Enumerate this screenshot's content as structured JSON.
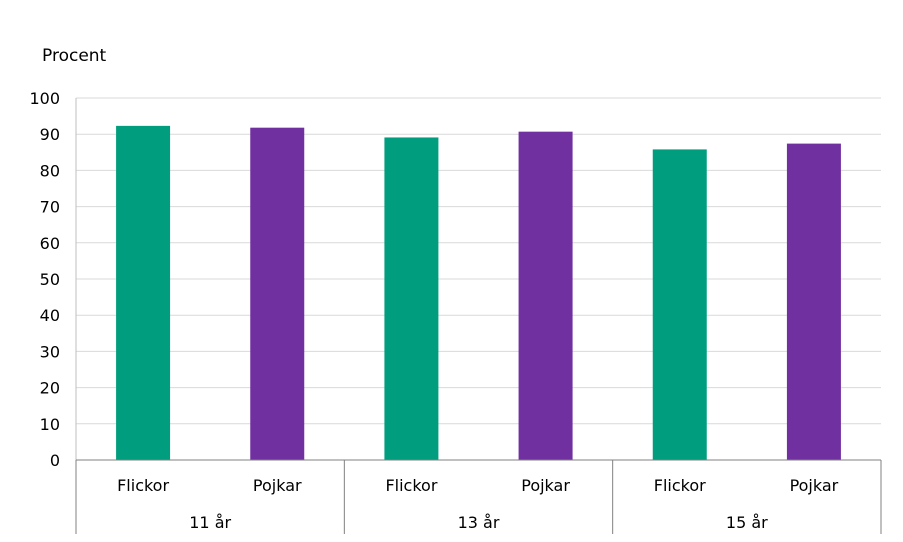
{
  "chart_data": {
    "type": "bar",
    "ylabel": "Procent",
    "ylim": [
      0,
      100
    ],
    "yticks": [
      0,
      10,
      20,
      30,
      40,
      50,
      60,
      70,
      80,
      90,
      100
    ],
    "grid": true,
    "colors": {
      "Flickor": "#009e7e",
      "Pojkar": "#7030a0"
    },
    "groups": [
      {
        "label": "11 år",
        "bars": [
          {
            "label": "Flickor",
            "value": 92.3
          },
          {
            "label": "Pojkar",
            "value": 91.8
          }
        ]
      },
      {
        "label": "13 år",
        "bars": [
          {
            "label": "Flickor",
            "value": 89.1
          },
          {
            "label": "Pojkar",
            "value": 90.7
          }
        ]
      },
      {
        "label": "15 år",
        "bars": [
          {
            "label": "Flickor",
            "value": 85.8
          },
          {
            "label": "Pojkar",
            "value": 87.4
          }
        ]
      }
    ]
  }
}
